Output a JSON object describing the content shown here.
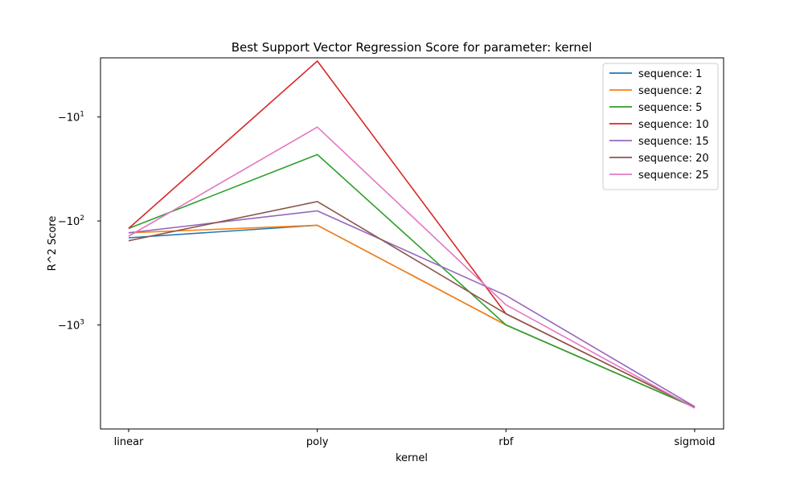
{
  "chart_data": {
    "type": "line",
    "title": "Best Support Vector Regression Score for parameter: kernel",
    "xlabel": "kernel",
    "ylabel": "R^2 Score",
    "categories": [
      "linear",
      "poly",
      "rbf",
      "sigmoid"
    ],
    "yscale": "symlog",
    "yticks": [
      {
        "value": -10,
        "base": "−10",
        "exp": "1"
      },
      {
        "value": -100,
        "base": "−10",
        "exp": "2"
      },
      {
        "value": -1000,
        "base": "−10",
        "exp": "3"
      }
    ],
    "ylim": [
      -10000,
      -2.7
    ],
    "grid": false,
    "legend_position": "top-right",
    "series": [
      {
        "name": "sequence: 1",
        "color": "#1f77b4",
        "values": [
          -145,
          -110,
          -1000,
          -6200
        ]
      },
      {
        "name": "sequence: 2",
        "color": "#ff7f0e",
        "values": [
          -130,
          -110,
          -1000,
          -6200
        ]
      },
      {
        "name": "sequence: 5",
        "color": "#2ca02c",
        "values": [
          -118,
          -23,
          -1000,
          -6200
        ]
      },
      {
        "name": "sequence: 10",
        "color": "#d62728",
        "values": [
          -118,
          -2.9,
          -780,
          -6200
        ]
      },
      {
        "name": "sequence: 15",
        "color": "#9467bd",
        "values": [
          -130,
          -80,
          -520,
          -6100
        ]
      },
      {
        "name": "sequence: 20",
        "color": "#8c564b",
        "values": [
          -155,
          -65,
          -780,
          -6200
        ]
      },
      {
        "name": "sequence: 25",
        "color": "#e377c2",
        "values": [
          -140,
          -12.5,
          -640,
          -6300
        ]
      }
    ]
  }
}
